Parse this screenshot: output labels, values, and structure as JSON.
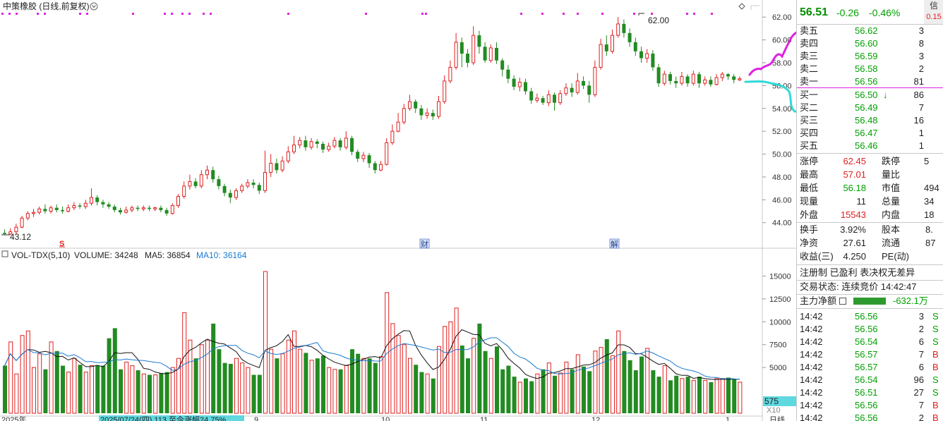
{
  "chart_header": {
    "title": "中策橡胶 (日线,前复权)",
    "settings_icon": "chevron-down-circle-icon",
    "right_icon": "diamond-icon"
  },
  "price_axis": {
    "ticks": [
      "62.00",
      "60.00",
      "58.00",
      "56.00",
      "54.00",
      "52.00",
      "50.00",
      "48.00",
      "46.00",
      "44.00"
    ],
    "min": 42.5,
    "max": 63
  },
  "annotations": {
    "high_label": "62.00",
    "low_label": "43.12",
    "marker_s": "S",
    "marker_cai": "财",
    "marker_jie": "解"
  },
  "volume_header": {
    "prefix": "VOL-TDX(5,10)",
    "volume": "VOLUME: 34248",
    "ma5": "MA5: 36854",
    "ma10": "MA10: 36164"
  },
  "volume_axis": {
    "ticks": [
      "15000",
      "12500",
      "10000",
      "7500",
      "5000"
    ],
    "scale": "X10",
    "cursor_value": "575",
    "max": 16500
  },
  "date_axis": {
    "labels": [
      "2025年",
      "2025/07/24(四) 113 至今涨幅24.75%",
      "9",
      "10",
      "11",
      "12",
      "1",
      "日线"
    ]
  },
  "colors": {
    "up": "#e02020",
    "down": "#228b22",
    "ma_short": "#111111",
    "ma_long": "#1a7ad0",
    "magenta": "#e020e0",
    "cyan": "#30d8d8"
  },
  "chart_data": {
    "type": "candlestick",
    "candles": [
      [
        43.1,
        43.0,
        43.4,
        42.9
      ],
      [
        43.0,
        43.2,
        43.5,
        42.9
      ],
      [
        43.2,
        43.6,
        43.9,
        43.0
      ],
      [
        43.6,
        44.4,
        44.6,
        43.5
      ],
      [
        44.4,
        44.8,
        45.0,
        44.2
      ],
      [
        44.8,
        44.9,
        45.2,
        44.5
      ],
      [
        44.9,
        45.2,
        45.4,
        44.7
      ],
      [
        45.2,
        45.0,
        45.6,
        44.8
      ],
      [
        45.0,
        45.3,
        45.5,
        44.8
      ],
      [
        45.3,
        45.1,
        45.6,
        44.9
      ],
      [
        45.1,
        45.0,
        45.4,
        44.8
      ],
      [
        45.0,
        45.3,
        45.6,
        44.9
      ],
      [
        45.3,
        45.5,
        45.8,
        45.1
      ],
      [
        45.5,
        45.4,
        45.7,
        45.2
      ],
      [
        45.4,
        45.7,
        46.0,
        45.2
      ],
      [
        45.7,
        46.2,
        47.0,
        45.5
      ],
      [
        46.2,
        45.8,
        46.4,
        45.5
      ],
      [
        45.8,
        45.6,
        46.0,
        45.3
      ],
      [
        45.6,
        45.4,
        45.8,
        45.2
      ],
      [
        45.4,
        45.1,
        45.6,
        44.9
      ],
      [
        45.1,
        44.9,
        45.3,
        44.7
      ],
      [
        44.9,
        45.1,
        45.4,
        44.8
      ],
      [
        45.1,
        45.3,
        45.5,
        44.9
      ],
      [
        45.3,
        45.2,
        45.5,
        45.0
      ],
      [
        45.2,
        45.3,
        45.5,
        45.0
      ],
      [
        45.3,
        45.2,
        45.5,
        45.0
      ],
      [
        45.2,
        45.3,
        45.4,
        45.0
      ],
      [
        45.3,
        45.1,
        45.5,
        44.9
      ],
      [
        45.1,
        44.8,
        45.3,
        44.6
      ],
      [
        44.8,
        45.5,
        45.7,
        44.7
      ],
      [
        45.5,
        46.3,
        46.5,
        45.3
      ],
      [
        46.3,
        47.2,
        47.6,
        46.1
      ],
      [
        47.2,
        47.6,
        48.2,
        46.9
      ],
      [
        47.6,
        47.2,
        47.9,
        47.0
      ],
      [
        47.2,
        48.2,
        48.6,
        47.0
      ],
      [
        48.2,
        48.6,
        49.0,
        47.8
      ],
      [
        48.6,
        47.8,
        48.9,
        47.5
      ],
      [
        47.8,
        47.2,
        48.1,
        46.9
      ],
      [
        47.2,
        46.6,
        47.4,
        46.3
      ],
      [
        46.6,
        46.2,
        46.9,
        45.7
      ],
      [
        46.2,
        46.8,
        47.0,
        46.0
      ],
      [
        46.8,
        47.2,
        47.4,
        46.6
      ],
      [
        47.2,
        47.5,
        47.8,
        47.0
      ],
      [
        47.5,
        47.3,
        47.8,
        47.0
      ],
      [
        47.3,
        46.8,
        47.5,
        46.5
      ],
      [
        46.8,
        48.4,
        50.3,
        46.6
      ],
      [
        48.4,
        49.2,
        50.0,
        48.0
      ],
      [
        49.2,
        48.6,
        49.6,
        48.3
      ],
      [
        48.6,
        49.4,
        49.8,
        48.4
      ],
      [
        49.4,
        50.2,
        50.7,
        49.2
      ],
      [
        50.2,
        50.8,
        51.6,
        50.0
      ],
      [
        50.8,
        51.2,
        51.5,
        50.5
      ],
      [
        51.2,
        50.6,
        51.6,
        50.3
      ],
      [
        50.6,
        51.1,
        51.4,
        50.4
      ],
      [
        51.1,
        50.9,
        51.3,
        50.5
      ],
      [
        50.9,
        50.4,
        51.1,
        50.1
      ],
      [
        50.4,
        50.7,
        51.0,
        50.2
      ],
      [
        50.7,
        51.2,
        51.5,
        50.5
      ],
      [
        51.2,
        50.6,
        51.4,
        50.3
      ],
      [
        50.6,
        51.4,
        52.0,
        50.4
      ],
      [
        51.4,
        50.2,
        51.6,
        49.9
      ],
      [
        50.2,
        49.6,
        50.4,
        49.3
      ],
      [
        49.6,
        49.9,
        50.2,
        49.3
      ],
      [
        49.9,
        49.2,
        50.1,
        48.8
      ],
      [
        49.2,
        48.6,
        49.4,
        48.3
      ],
      [
        48.6,
        49.1,
        49.4,
        48.5
      ],
      [
        49.1,
        51.0,
        51.4,
        49.0
      ],
      [
        51.0,
        52.0,
        52.6,
        50.8
      ],
      [
        52.0,
        52.8,
        53.6,
        51.9
      ],
      [
        52.8,
        54.0,
        54.4,
        52.6
      ],
      [
        54.0,
        54.6,
        55.2,
        53.8
      ],
      [
        54.6,
        54.0,
        54.8,
        53.6
      ],
      [
        54.0,
        53.4,
        54.3,
        53.0
      ],
      [
        53.4,
        53.6,
        54.0,
        53.1
      ],
      [
        53.6,
        53.3,
        53.9,
        53.0
      ],
      [
        53.3,
        54.6,
        55.1,
        53.1
      ],
      [
        54.6,
        56.4,
        56.9,
        54.4
      ],
      [
        56.4,
        57.6,
        58.2,
        56.2
      ],
      [
        57.6,
        59.8,
        60.6,
        57.4
      ],
      [
        59.8,
        58.8,
        60.2,
        57.6
      ],
      [
        58.8,
        58.0,
        59.2,
        57.6
      ],
      [
        58.0,
        60.4,
        61.2,
        57.8
      ],
      [
        60.4,
        59.4,
        60.8,
        58.8
      ],
      [
        59.4,
        58.2,
        59.8,
        58.0
      ],
      [
        58.2,
        59.3,
        59.6,
        58.0
      ],
      [
        59.3,
        58.2,
        59.8,
        57.9
      ],
      [
        58.2,
        57.4,
        58.4,
        56.8
      ],
      [
        57.4,
        56.6,
        57.8,
        56.2
      ],
      [
        56.6,
        55.9,
        56.9,
        55.6
      ],
      [
        55.9,
        56.3,
        56.7,
        55.5
      ],
      [
        56.3,
        55.5,
        56.6,
        55.2
      ],
      [
        55.5,
        54.7,
        55.8,
        54.4
      ],
      [
        54.7,
        54.9,
        55.3,
        54.5
      ],
      [
        54.9,
        54.5,
        55.1,
        54.3
      ],
      [
        54.5,
        55.2,
        55.6,
        54.2
      ],
      [
        55.2,
        54.5,
        55.4,
        53.8
      ],
      [
        54.5,
        55.3,
        55.6,
        54.3
      ],
      [
        55.3,
        55.8,
        56.2,
        55.1
      ],
      [
        55.8,
        55.4,
        56.2,
        55.0
      ],
      [
        55.4,
        56.4,
        57.1,
        55.2
      ],
      [
        56.4,
        56.0,
        56.8,
        55.7
      ],
      [
        56.0,
        55.2,
        56.4,
        54.5
      ],
      [
        55.2,
        57.6,
        58.2,
        55.0
      ],
      [
        57.6,
        59.6,
        60.1,
        57.4
      ],
      [
        59.6,
        59.0,
        60.4,
        58.6
      ],
      [
        59.0,
        60.4,
        60.9,
        58.8
      ],
      [
        60.4,
        61.4,
        62.0,
        60.2
      ],
      [
        61.4,
        60.6,
        61.8,
        60.2
      ],
      [
        60.6,
        59.8,
        61.0,
        59.4
      ],
      [
        59.8,
        59.0,
        60.2,
        58.6
      ],
      [
        59.0,
        58.4,
        59.4,
        58.0
      ],
      [
        58.4,
        58.8,
        59.2,
        58.0
      ],
      [
        58.8,
        57.6,
        59.1,
        57.3
      ],
      [
        57.6,
        56.2,
        57.9,
        55.9
      ],
      [
        56.2,
        57.0,
        57.3,
        56.0
      ],
      [
        57.0,
        56.4,
        57.2,
        56.1
      ],
      [
        56.4,
        56.2,
        56.8,
        55.8
      ],
      [
        56.2,
        56.8,
        57.2,
        56.0
      ],
      [
        56.8,
        56.2,
        57.0,
        55.9
      ],
      [
        56.2,
        57.0,
        57.3,
        56.0
      ],
      [
        57.0,
        56.2,
        57.2,
        55.8
      ],
      [
        56.2,
        56.5,
        56.8,
        56.0
      ],
      [
        56.5,
        56.1,
        56.8,
        55.9
      ],
      [
        56.1,
        56.7,
        57.0,
        56.0
      ],
      [
        56.7,
        57.0,
        57.2,
        56.4
      ],
      [
        57.0,
        56.8,
        57.1,
        56.5
      ],
      [
        56.8,
        56.5,
        57.0,
        56.2
      ],
      [
        56.5,
        56.6,
        56.8,
        56.4
      ]
    ],
    "volume": [
      5200,
      7800,
      4300,
      8500,
      9000,
      5000,
      6500,
      4800,
      7800,
      6800,
      5200,
      4500,
      6000,
      5300,
      4500,
      5200,
      5200,
      5200,
      8200,
      9300,
      4800,
      5600,
      5200,
      4700,
      4300,
      4200,
      4200,
      4400,
      4500,
      5000,
      6000,
      11000,
      8000,
      6000,
      7500,
      8000,
      9800,
      7000,
      5500,
      5400,
      6000,
      5500,
      5000,
      4200,
      4200,
      15500,
      7000,
      6000,
      6500,
      8000,
      9000,
      7000,
      6600,
      5800,
      6000,
      6300,
      5000,
      4800,
      4800,
      5200,
      7000,
      6500,
      6000,
      6000,
      5500,
      6200,
      13200,
      9800,
      8500,
      7500,
      6000,
      5300,
      4500,
      4300,
      3800,
      7300,
      9500,
      10000,
      11500,
      7400,
      6000,
      8200,
      9800,
      6800,
      6000,
      7300,
      4800,
      5200,
      4000,
      3400,
      3800,
      3500,
      4300,
      4800,
      5500,
      4100,
      4400,
      5600,
      4800,
      6400,
      5100,
      4600,
      6800,
      7200,
      8100,
      6300,
      9000,
      6800,
      5800,
      4700,
      6200,
      7100,
      4700,
      4000,
      5200,
      3600,
      4100,
      3800,
      4000,
      3600,
      4000,
      3600,
      3400,
      3800,
      3800,
      3900,
      3700,
      3400
    ]
  },
  "quote_panel": {
    "price": "56.51",
    "change": "-0.26",
    "pct": "-0.46%",
    "corner_top": "信",
    "corner_bottom": "0.15",
    "asks": [
      {
        "label": "卖五",
        "price": "56.62",
        "vol": "3"
      },
      {
        "label": "卖四",
        "price": "56.60",
        "vol": "8"
      },
      {
        "label": "卖三",
        "price": "56.59",
        "vol": "3"
      },
      {
        "label": "卖二",
        "price": "56.58",
        "vol": "2"
      },
      {
        "label": "卖一",
        "price": "56.56",
        "vol": "81"
      }
    ],
    "bids": [
      {
        "label": "买一",
        "price": "56.50",
        "vol": "86"
      },
      {
        "label": "买二",
        "price": "56.49",
        "vol": "7"
      },
      {
        "label": "买三",
        "price": "56.48",
        "vol": "16"
      },
      {
        "label": "买四",
        "price": "56.47",
        "vol": "1"
      },
      {
        "label": "买五",
        "price": "56.46",
        "vol": "1"
      }
    ],
    "stats": [
      {
        "k1": "涨停",
        "v1": "62.45",
        "c1": "red",
        "k2": "跌停",
        "v2": "5"
      },
      {
        "k1": "最高",
        "v1": "57.01",
        "c1": "red",
        "k2": "量比",
        "v2": ""
      },
      {
        "k1": "最低",
        "v1": "56.18",
        "c1": "green",
        "k2": "市值",
        "v2": "494"
      },
      {
        "k1": "现量",
        "v1": "11",
        "c1": "dark",
        "k2": "总量",
        "v2": "34"
      },
      {
        "k1": "外盘",
        "v1": "15543",
        "c1": "red",
        "k2": "内盘",
        "v2": "18"
      }
    ],
    "stats2": [
      {
        "k1": "换手",
        "v1": "3.92%",
        "k2": "股本",
        "v2": "8."
      },
      {
        "k1": "净资",
        "v1": "27.61",
        "k2": "流通",
        "v2": "87"
      },
      {
        "k1": "收益(三)",
        "v1": "4.250",
        "k2": "PE(动)",
        "v2": ""
      }
    ],
    "tags": "注册制 已盈利 表决权无差异",
    "trade_status": "交易状态: 连续竞价 14:42:47",
    "main_net_label": "主力净额",
    "main_net_value": "-632.1万",
    "ticks": [
      {
        "t": "14:42",
        "p": "56.56",
        "v": "3",
        "s": "S"
      },
      {
        "t": "14:42",
        "p": "56.56",
        "v": "2",
        "s": "S"
      },
      {
        "t": "14:42",
        "p": "56.54",
        "v": "6",
        "s": "S"
      },
      {
        "t": "14:42",
        "p": "56.57",
        "v": "7",
        "s": "B"
      },
      {
        "t": "14:42",
        "p": "56.57",
        "v": "6",
        "s": "B"
      },
      {
        "t": "14:42",
        "p": "56.54",
        "v": "96",
        "s": "S"
      },
      {
        "t": "14:42",
        "p": "56.51",
        "v": "27",
        "s": "S"
      },
      {
        "t": "14:42",
        "p": "56.56",
        "v": "7",
        "s": "B"
      },
      {
        "t": "14:42",
        "p": "56.56",
        "v": "2",
        "s": "B"
      }
    ]
  }
}
